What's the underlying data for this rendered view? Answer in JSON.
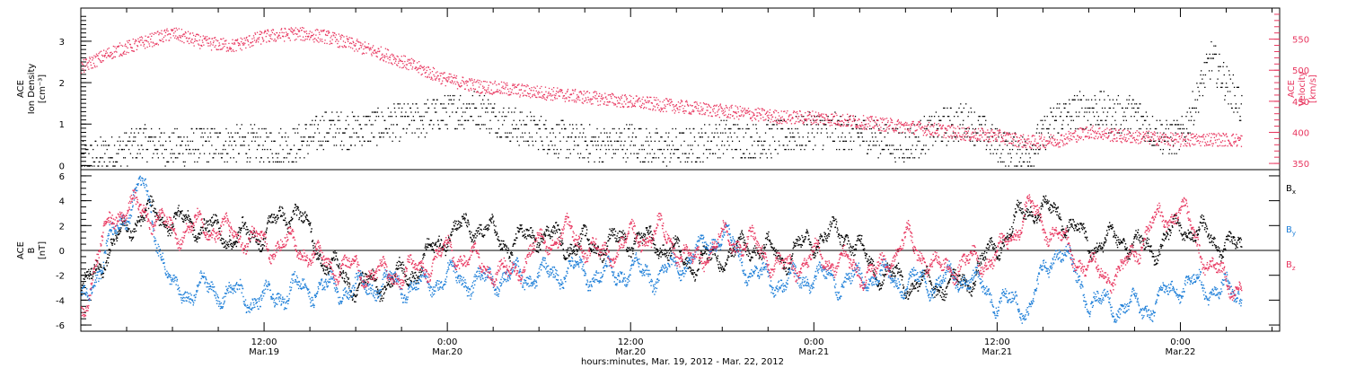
{
  "colors": {
    "axis": "#000000",
    "density": "#000000",
    "velocity": "#e8365f",
    "bx": "#000000",
    "by": "#1e7fd8",
    "bz": "#e8365f"
  },
  "time_axis": {
    "caption": "hours:minutes, Mar. 19, 2012 - Mar. 22, 2012",
    "range_hours": [
      0,
      78.5
    ],
    "ticks": [
      {
        "hour": 12,
        "time": "12:00",
        "date": "Mar.19"
      },
      {
        "hour": 24,
        "time": "0:00",
        "date": "Mar.20"
      },
      {
        "hour": 36,
        "time": "12:00",
        "date": "Mar.20"
      },
      {
        "hour": 48,
        "time": "0:00",
        "date": "Mar.21"
      },
      {
        "hour": 60,
        "time": "12:00",
        "date": "Mar.21"
      },
      {
        "hour": 72,
        "time": "0:00",
        "date": "Mar.22"
      }
    ]
  },
  "chart_data": [
    {
      "type": "scatter",
      "panel": "top",
      "ylabel_left": [
        "ACE",
        "Ion Density",
        "[cm⁻³]"
      ],
      "ylabel_right": [
        "ACE",
        "Velocity",
        "[km/s]"
      ],
      "ylim_left": [
        -0.1,
        3.8
      ],
      "ylim_right": [
        340,
        600
      ],
      "yticks_left": [
        "0",
        "1",
        "2",
        "3"
      ],
      "yticks_right": [
        "350",
        "400",
        "450",
        "500",
        "550"
      ],
      "series": [
        {
          "axis": "left",
          "x": [
            0,
            2,
            4,
            6,
            8,
            10,
            12,
            14,
            16,
            18,
            20,
            22,
            24,
            26,
            28,
            30,
            32,
            34,
            36,
            38,
            40,
            42,
            44,
            46,
            48,
            50,
            52,
            54,
            56,
            58,
            60,
            62,
            64,
            66,
            68,
            69,
            70,
            71,
            72,
            73,
            74,
            75,
            76
          ],
          "values": [
            0.15,
            0.3,
            0.6,
            0.45,
            0.5,
            0.55,
            0.5,
            0.5,
            0.9,
            0.85,
            1.0,
            1.1,
            1.3,
            1.4,
            1.0,
            0.8,
            0.6,
            0.5,
            0.6,
            0.4,
            0.5,
            0.7,
            0.6,
            0.7,
            0.9,
            0.8,
            0.7,
            0.5,
            0.9,
            1.1,
            0.5,
            0.3,
            1.2,
            1.4,
            1.2,
            1.3,
            0.9,
            0.7,
            0.7,
            1.6,
            2.6,
            2.0,
            1.4
          ]
        },
        {
          "axis": "right",
          "x": [
            0,
            2,
            4,
            6,
            8,
            10,
            12,
            14,
            16,
            18,
            20,
            22,
            24,
            26,
            28,
            30,
            32,
            34,
            36,
            38,
            40,
            42,
            44,
            46,
            48,
            50,
            52,
            54,
            56,
            58,
            60,
            62,
            64,
            66,
            68,
            70,
            72,
            74,
            76
          ],
          "values": [
            505,
            530,
            545,
            560,
            545,
            540,
            555,
            560,
            555,
            540,
            525,
            505,
            485,
            475,
            470,
            465,
            460,
            455,
            450,
            445,
            440,
            435,
            430,
            425,
            425,
            420,
            415,
            410,
            405,
            398,
            395,
            385,
            388,
            402,
            395,
            392,
            388,
            390,
            388
          ]
        }
      ]
    },
    {
      "type": "scatter",
      "panel": "bottom",
      "ylabel": [
        "ACE",
        "B",
        "[nT]"
      ],
      "ylim": [
        -6.5,
        6.5
      ],
      "yticks": [
        "-6",
        "-4",
        "-2",
        "0",
        "2",
        "4",
        "6"
      ],
      "zero_line": true,
      "legend_placement": "right",
      "series": [
        {
          "legend": "Bx",
          "x": [
            0,
            2,
            4,
            6,
            8,
            10,
            12,
            14,
            16,
            18,
            20,
            22,
            24,
            26,
            28,
            30,
            32,
            34,
            36,
            38,
            40,
            42,
            44,
            46,
            48,
            50,
            52,
            54,
            56,
            58,
            60,
            62,
            64,
            66,
            68,
            70,
            72,
            74,
            76
          ],
          "values": [
            -3.5,
            0.5,
            3.0,
            2.5,
            2.0,
            1.0,
            1.5,
            3.5,
            -1.0,
            -2.8,
            -2.5,
            -1.5,
            1.5,
            2.0,
            0.5,
            1.5,
            0.5,
            0.5,
            1.0,
            0.5,
            -1.0,
            -0.5,
            0.5,
            -0.5,
            1.0,
            1.5,
            -1.5,
            -2.5,
            -2.8,
            -2.5,
            0.5,
            3.5,
            3.0,
            0.5,
            1.0,
            0.0,
            2.0,
            1.0,
            0.0
          ]
        },
        {
          "legend": "By",
          "x": [
            0,
            2,
            4,
            6,
            8,
            10,
            12,
            14,
            16,
            18,
            20,
            22,
            24,
            26,
            28,
            30,
            32,
            34,
            36,
            38,
            40,
            42,
            44,
            46,
            48,
            50,
            52,
            54,
            56,
            58,
            60,
            62,
            64,
            66,
            68,
            70,
            72,
            74,
            76
          ],
          "values": [
            -4.5,
            1.0,
            5.5,
            -3.5,
            -3.0,
            -3.5,
            -4.0,
            -3.0,
            -3.0,
            -3.0,
            -2.5,
            -3.0,
            -2.0,
            -2.5,
            -2.0,
            -2.0,
            -1.5,
            -2.0,
            -1.5,
            -2.0,
            -0.5,
            1.5,
            -2.0,
            -2.5,
            -2.0,
            -2.5,
            -2.0,
            -2.5,
            -2.5,
            -2.0,
            -4.0,
            -4.5,
            0.5,
            -4.0,
            -4.5,
            -4.5,
            -2.5,
            -3.0,
            -3.5
          ]
        },
        {
          "legend": "Bz",
          "x": [
            0,
            2,
            4,
            6,
            8,
            10,
            12,
            14,
            16,
            18,
            20,
            22,
            24,
            26,
            28,
            30,
            32,
            34,
            36,
            38,
            40,
            42,
            44,
            46,
            48,
            50,
            52,
            54,
            56,
            58,
            60,
            62,
            64,
            66,
            68,
            70,
            72,
            74,
            76
          ],
          "values": [
            -5.0,
            3.0,
            3.5,
            1.5,
            2.0,
            1.5,
            0.5,
            0.5,
            -1.0,
            -1.5,
            -2.0,
            -1.5,
            0.0,
            -1.0,
            -2.0,
            0.5,
            1.5,
            -0.5,
            1.0,
            1.5,
            -1.0,
            1.0,
            0.5,
            -1.5,
            -0.5,
            -1.0,
            -2.0,
            1.0,
            -1.5,
            -1.0,
            -0.5,
            3.5,
            1.0,
            -1.5,
            -2.0,
            2.0,
            3.5,
            -1.5,
            -3.0
          ]
        }
      ]
    }
  ]
}
